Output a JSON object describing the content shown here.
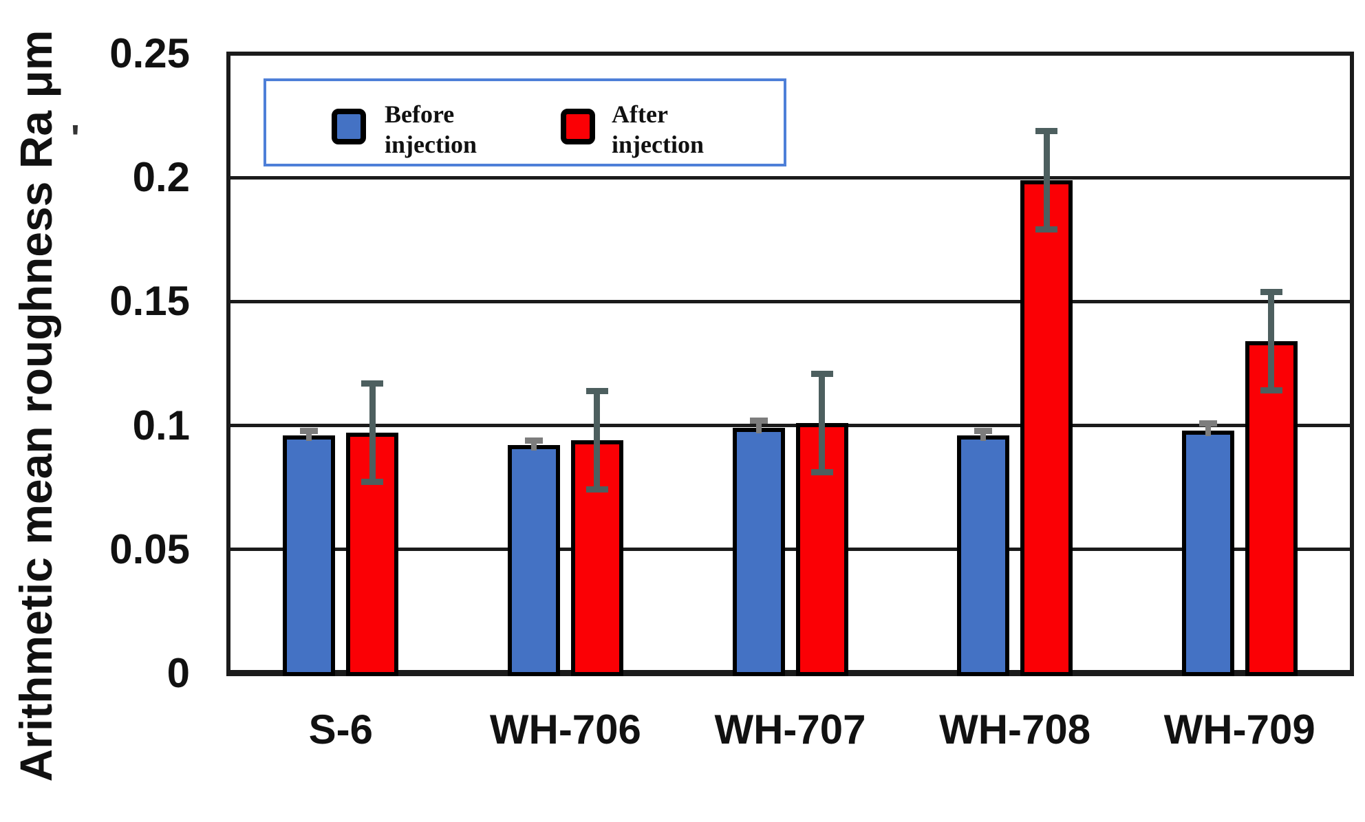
{
  "decor": {
    "stray_mark": "'"
  },
  "chart_data": {
    "type": "bar",
    "title": "",
    "xlabel": "",
    "ylabel": "Arithmetic mean roughness Ra μm",
    "ylim": [
      0,
      0.25
    ],
    "grid": true,
    "legend_position": "top-left-inside",
    "legend_border_color": "#4e7fd8",
    "frame_color": "#1b1b1b",
    "yticks": [
      0,
      0.05,
      0.1,
      0.15,
      0.2,
      0.25
    ],
    "ytick_labels": [
      "0",
      "0.05",
      "0.1",
      "0.15",
      "0.2",
      "0.25"
    ],
    "categories": [
      "S-6",
      "WH-706",
      "WH-707",
      "WH-708",
      "WH-709"
    ],
    "series": [
      {
        "name": "Before injection",
        "color": "#4472C4",
        "error_color": "#7d7d7d",
        "values": [
          0.096,
          0.092,
          0.099,
          0.096,
          0.098
        ],
        "error_plus": [
          0.002,
          0.002,
          0.003,
          0.002,
          0.003
        ],
        "error_minus": [
          0.002,
          0.002,
          0.003,
          0.002,
          0.003
        ]
      },
      {
        "name": "After injection",
        "color": "#FB0005",
        "error_color": "#4d5f5f",
        "values": [
          0.097,
          0.094,
          0.101,
          0.199,
          0.134
        ],
        "error_plus": [
          0.02,
          0.02,
          0.02,
          0.02,
          0.02
        ],
        "error_minus": [
          0.02,
          0.02,
          0.02,
          0.02,
          0.02
        ]
      }
    ],
    "legend": {
      "items": [
        {
          "line1": "Before",
          "line2": "injection"
        },
        {
          "line1": "After",
          "line2": "injection"
        }
      ]
    }
  }
}
